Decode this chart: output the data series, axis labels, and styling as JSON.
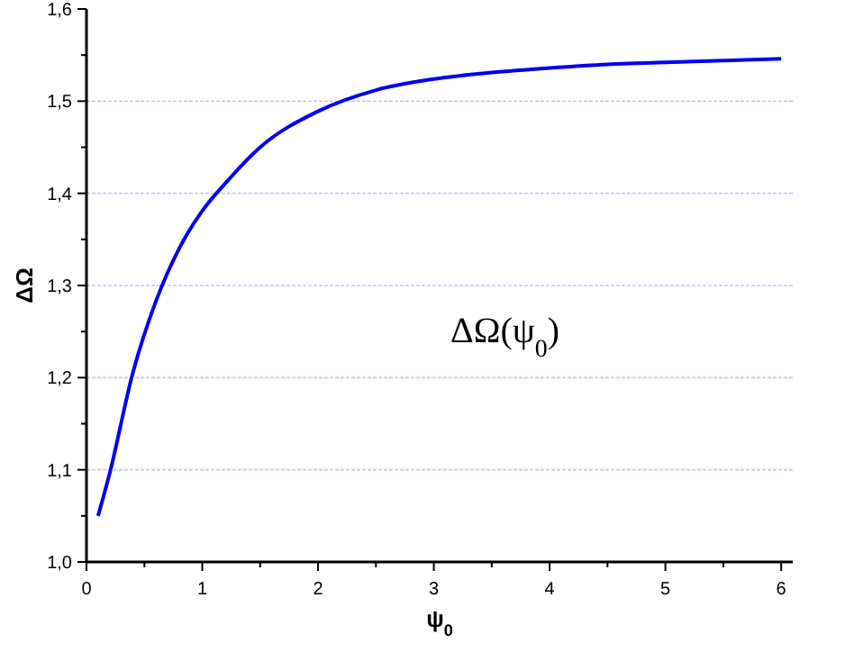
{
  "chart_data": {
    "type": "line",
    "xlabel": "ψ$_{0}$",
    "ylabel": "ΔΩ",
    "annotations": [
      "ΔΩ(ψ$_{0}$)"
    ],
    "series": [
      {
        "color": "#0000ee",
        "x": [
          0.1,
          0.2,
          0.4,
          0.6,
          0.8,
          1.0,
          1.2,
          1.5,
          2.0,
          2.5,
          3.0,
          3.5,
          4.0,
          4.5,
          5.0,
          5.5,
          6.0
        ],
        "values": [
          1.05,
          1.096,
          1.205,
          1.283,
          1.34,
          1.381,
          1.411,
          1.45,
          1.489,
          1.512,
          1.524,
          1.531,
          1.536,
          1.54,
          1.542,
          1.544,
          1.546
        ]
      }
    ],
    "xlim": [
      0,
      6.1
    ],
    "xticks": [
      0,
      {
        "value": 0.5,
        "label": null
      },
      1,
      {
        "value": 1.5,
        "label": null
      },
      2,
      {
        "value": 2.5,
        "label": null
      },
      3,
      {
        "value": 3.5,
        "label": null
      },
      4,
      {
        "value": 4.5,
        "label": null
      },
      5,
      {
        "value": 5.5,
        "label": null
      },
      6
    ],
    "ylim": [
      1.0,
      1.6
    ],
    "yticks": [
      {
        "value": 1.0,
        "label": "1,0"
      },
      {
        "value": 1.05,
        "label": null
      },
      {
        "value": 1.1,
        "label": "1,1"
      },
      {
        "value": 1.15,
        "label": null
      },
      {
        "value": 1.2,
        "label": "1,2"
      },
      {
        "value": 1.25,
        "label": null
      },
      {
        "value": 1.3,
        "label": "1,3"
      },
      {
        "value": 1.35,
        "label": null
      },
      {
        "value": 1.4,
        "label": "1,4"
      },
      {
        "value": 1.45,
        "label": null
      },
      {
        "value": 1.5,
        "label": "1,5"
      },
      {
        "value": 1.55,
        "label": null
      },
      {
        "value": 1.6,
        "label": "1,6"
      }
    ],
    "grid": "y",
    "line_style": "solid"
  }
}
